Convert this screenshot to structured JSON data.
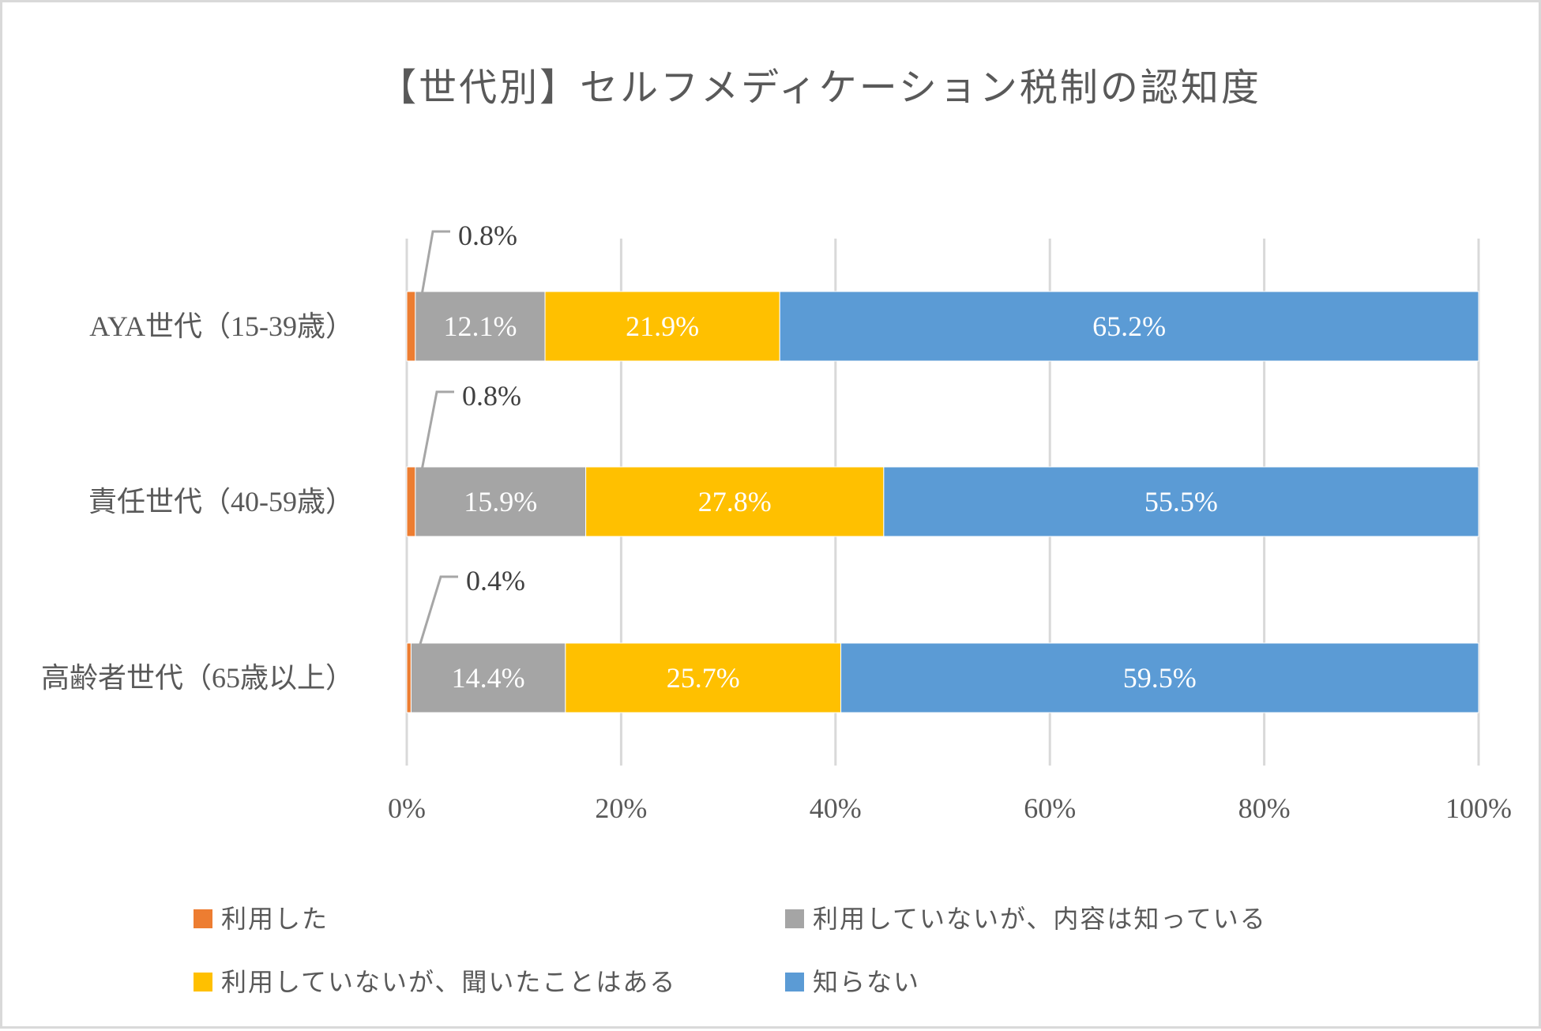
{
  "chart_data": {
    "type": "bar",
    "orientation": "horizontal",
    "stacked": "percent",
    "title": "【世代別】セルフメディケーション税制の認知度",
    "xlabel": "",
    "ylabel": "",
    "xlim": [
      0,
      100
    ],
    "x_ticks": [
      "0%",
      "20%",
      "40%",
      "60%",
      "80%",
      "100%"
    ],
    "grid": "vertical",
    "legend_position": "bottom",
    "categories": [
      "AYA世代（15-39歳）",
      "責任世代（40-59歳）",
      "高齢者世代（65歳以上）"
    ],
    "series": [
      {
        "name": "利用した",
        "color": "#ED7D31",
        "values": [
          0.8,
          0.8,
          0.4
        ],
        "labels": [
          "0.8%",
          "0.8%",
          "0.4%"
        ],
        "label_style": "callout"
      },
      {
        "name": "利用していないが、内容は知っている",
        "color": "#A5A5A5",
        "values": [
          12.1,
          15.9,
          14.4
        ],
        "labels": [
          "12.1%",
          "15.9%",
          "14.4%"
        ],
        "label_style": "inside"
      },
      {
        "name": "利用していないが、聞いたことはある",
        "color": "#FFC000",
        "values": [
          21.9,
          27.8,
          25.7
        ],
        "labels": [
          "21.9%",
          "27.8%",
          "25.7%"
        ],
        "label_style": "inside"
      },
      {
        "name": "知らない",
        "color": "#5B9BD5",
        "values": [
          65.2,
          55.5,
          59.5
        ],
        "labels": [
          "65.2%",
          "55.5%",
          "59.5%"
        ],
        "label_style": "inside"
      }
    ]
  },
  "colors": {
    "gridline": "#D9D9D9",
    "text": "#595959",
    "callout_line": "#A6A6A6"
  }
}
